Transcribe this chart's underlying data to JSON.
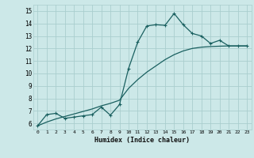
{
  "xlabel": "Humidex (Indice chaleur)",
  "xlim": [
    -0.5,
    23.5
  ],
  "ylim": [
    5.5,
    15.5
  ],
  "yticks": [
    6,
    7,
    8,
    9,
    10,
    11,
    12,
    13,
    14,
    15
  ],
  "xticks": [
    0,
    1,
    2,
    3,
    4,
    5,
    6,
    7,
    8,
    9,
    10,
    11,
    12,
    13,
    14,
    15,
    16,
    17,
    18,
    19,
    20,
    21,
    22,
    23
  ],
  "bg_color": "#cce8e8",
  "grid_color": "#aacece",
  "line_color": "#1a6060",
  "curve1_x": [
    0,
    1,
    2,
    3,
    4,
    5,
    6,
    7,
    8,
    9,
    10,
    11,
    12,
    13,
    14,
    15,
    16,
    17,
    18,
    19,
    20,
    21,
    22,
    23
  ],
  "curve1_y": [
    5.8,
    6.7,
    6.8,
    6.4,
    6.5,
    6.6,
    6.7,
    7.3,
    6.65,
    7.5,
    10.4,
    12.5,
    13.8,
    13.9,
    13.85,
    14.8,
    13.9,
    13.2,
    13.0,
    12.4,
    12.65,
    12.2,
    12.2,
    12.2
  ],
  "curve2_x": [
    0,
    1,
    2,
    3,
    4,
    5,
    6,
    7,
    8,
    9,
    10,
    11,
    12,
    13,
    14,
    15,
    16,
    17,
    18,
    19,
    20,
    21,
    22,
    23
  ],
  "curve2_y": [
    5.8,
    6.1,
    6.35,
    6.55,
    6.75,
    6.95,
    7.15,
    7.4,
    7.6,
    7.85,
    8.8,
    9.5,
    10.1,
    10.6,
    11.1,
    11.5,
    11.8,
    12.0,
    12.1,
    12.15,
    12.18,
    12.2,
    12.2,
    12.2
  ]
}
